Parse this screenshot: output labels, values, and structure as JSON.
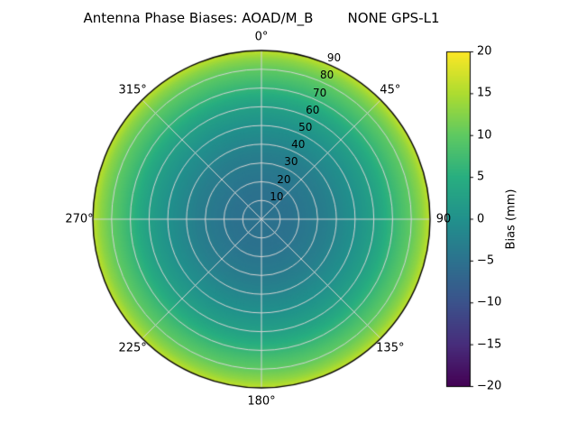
{
  "title": "Antenna Phase Biases: AOAD/M_B        NONE GPS-L1",
  "chart_data": {
    "type": "heatmap",
    "projection": "polar",
    "title": "Antenna Phase Biases: AOAD/M_B        NONE GPS-L1",
    "antenna": "AOAD/M_B",
    "radome": "NONE",
    "signal": "GPS-L1",
    "colormap": "viridis",
    "background": "#ffffff",
    "grid_color": "#d4d4d4",
    "edge_color": "#000000",
    "angle_ticks_deg": [
      0,
      45,
      90,
      135,
      180,
      225,
      270,
      315
    ],
    "angle_tick_labels": [
      "0°",
      "45°",
      "90",
      "135°",
      "180°",
      "225°",
      "270°",
      "315°"
    ],
    "radial_ticks": [
      10,
      20,
      30,
      40,
      50,
      60,
      70,
      80,
      90
    ],
    "radial_label_azimuth_deg": 22.5,
    "radial_axis": "zenith angle (deg), 0 at center to 90 at edge",
    "bias_profile": {
      "zenith_deg": [
        0,
        15,
        35,
        50,
        62,
        72,
        80,
        86,
        90
      ],
      "bias_mm": [
        -5,
        -5,
        -3,
        0,
        3,
        7,
        10,
        13,
        16
      ],
      "note": "azimuthally symmetric phase bias pattern"
    },
    "colorbar": {
      "label": "Bias (mm)",
      "min": -20,
      "max": 20,
      "ticks": [
        20,
        15,
        10,
        5,
        0,
        -5,
        -10,
        -15,
        -20
      ],
      "tick_labels": [
        "20",
        "15",
        "10",
        "5",
        "0",
        "−5",
        "−10",
        "−15",
        "−20"
      ]
    },
    "viridis_stops": [
      [
        0.0,
        "#440154"
      ],
      [
        0.125,
        "#472d7b"
      ],
      [
        0.25,
        "#3b528b"
      ],
      [
        0.375,
        "#2c728e"
      ],
      [
        0.5,
        "#21918c"
      ],
      [
        0.625,
        "#28ae80"
      ],
      [
        0.75,
        "#5ec962"
      ],
      [
        0.875,
        "#addc30"
      ],
      [
        1.0,
        "#fde725"
      ]
    ]
  }
}
